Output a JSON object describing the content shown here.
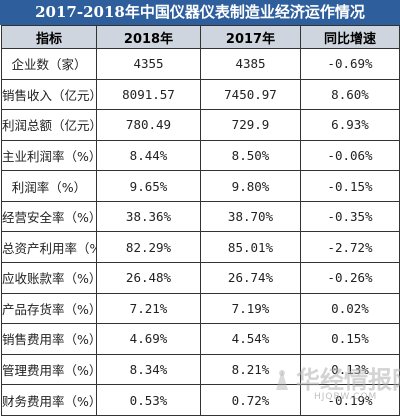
{
  "title": "2017-2018年中国仪器仪表制造业经济运作情况",
  "table": {
    "headers": [
      "指标",
      "2018年",
      "2017年",
      "同比增速"
    ],
    "rows": [
      {
        "label": "企业数（家）",
        "v2018": "4355",
        "v2017": "4385",
        "growth": "-0.69%"
      },
      {
        "label": "销售收入（亿元）",
        "v2018": "8091.57",
        "v2017": "7450.97",
        "growth": "8.60%"
      },
      {
        "label": "利润总额（亿元）",
        "v2018": "780.49",
        "v2017": "729.9",
        "growth": "6.93%"
      },
      {
        "label": "主业利润率（%）",
        "v2018": "8.44%",
        "v2017": "8.50%",
        "growth": "-0.06%"
      },
      {
        "label": "利润率（%）",
        "v2018": "9.65%",
        "v2017": "9.80%",
        "growth": "-0.15%"
      },
      {
        "label": "经营安全率（%）",
        "v2018": "38.36%",
        "v2017": "38.70%",
        "growth": "-0.35%"
      },
      {
        "label": "总资产利用率（%）",
        "v2018": "82.29%",
        "v2017": "85.01%",
        "growth": "-2.72%"
      },
      {
        "label": "应收账款率（%）",
        "v2018": "26.48%",
        "v2017": "26.74%",
        "growth": "-0.26%"
      },
      {
        "label": "产品存货率（%）",
        "v2018": "7.21%",
        "v2017": "7.19%",
        "growth": "0.02%"
      },
      {
        "label": "销售费用率（%）",
        "v2018": "4.69%",
        "v2017": "4.54%",
        "growth": "0.15%"
      },
      {
        "label": "管理费用率（%）",
        "v2018": "8.34%",
        "v2017": "8.21%",
        "growth": "0.13%"
      },
      {
        "label": "财务费用率（%）",
        "v2018": "0.53%",
        "v2017": "0.72%",
        "growth": "-0.19%"
      }
    ]
  },
  "watermark": {
    "text": "华经情报网",
    "sub": "HJQBW.COM"
  },
  "colors": {
    "title_bg": "#2e5f9c",
    "header_bg": "#cfd5de",
    "border": "#333333"
  }
}
